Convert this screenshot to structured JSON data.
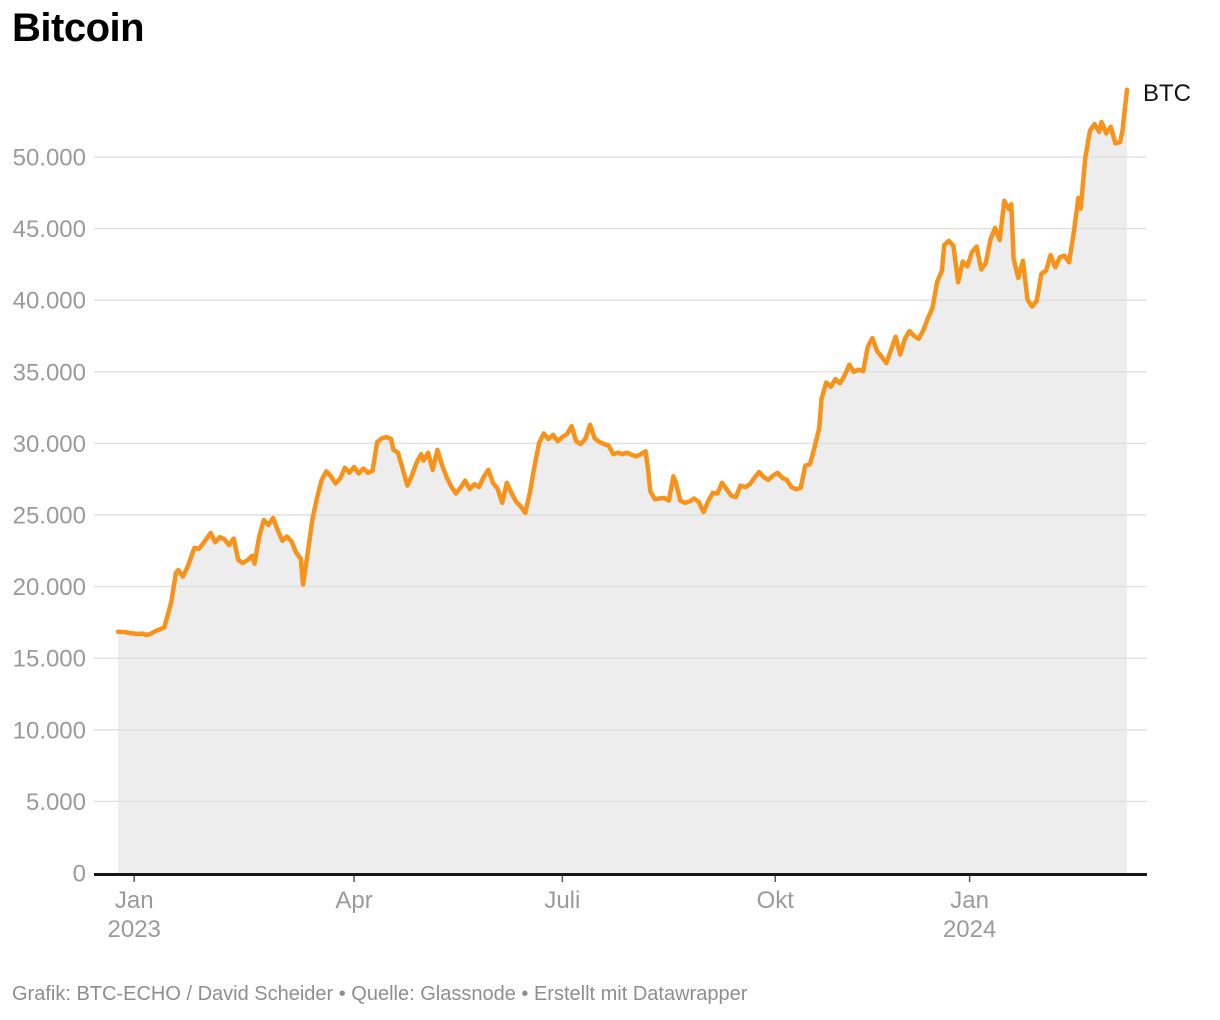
{
  "title": "Bitcoin",
  "series_label": "BTC",
  "footer": "Grafik: BTC-ECHO / David Scheider • Quelle: Glassnode • Erstellt mit Datawrapper",
  "colors": {
    "line": "#F7931A",
    "area_fill": "#ededed",
    "gridline": "#e0e0e0",
    "zero_axis": "#161616",
    "axis_label": "#9a9a9a",
    "tick_mark": "#555555",
    "title_text": "#000000",
    "footer_text": "#8e8e8e",
    "series_label_text": "#141414"
  },
  "chart_data": {
    "type": "area",
    "title": "Bitcoin",
    "xlabel": "",
    "ylabel": "",
    "legend_position": "end-of-line",
    "grid": true,
    "ylim": [
      0,
      55800
    ],
    "y_ticks": [
      {
        "value": 0,
        "label": "0"
      },
      {
        "value": 5000,
        "label": "5.000"
      },
      {
        "value": 10000,
        "label": "10.000"
      },
      {
        "value": 15000,
        "label": "15.000"
      },
      {
        "value": 20000,
        "label": "20.000"
      },
      {
        "value": 25000,
        "label": "25.000"
      },
      {
        "value": 30000,
        "label": "30.000"
      },
      {
        "value": 35000,
        "label": "35.000"
      },
      {
        "value": 40000,
        "label": "40.000"
      },
      {
        "value": 45000,
        "label": "45.000"
      },
      {
        "value": 50000,
        "label": "50.000"
      }
    ],
    "x_domain_days": [
      0,
      436
    ],
    "x_ticks": [
      {
        "day": 7,
        "label": "Jan",
        "sublabel": "2023"
      },
      {
        "day": 102,
        "label": "Apr",
        "sublabel": ""
      },
      {
        "day": 192,
        "label": "Juli",
        "sublabel": ""
      },
      {
        "day": 284,
        "label": "Okt",
        "sublabel": ""
      },
      {
        "day": 368,
        "label": "Jan",
        "sublabel": "2024"
      }
    ],
    "series": [
      {
        "name": "BTC",
        "points": [
          [
            0,
            16850
          ],
          [
            3,
            16820
          ],
          [
            5,
            16760
          ],
          [
            8,
            16700
          ],
          [
            11,
            16720
          ],
          [
            12,
            16620
          ],
          [
            14,
            16700
          ],
          [
            17,
            16950
          ],
          [
            20,
            17150
          ],
          [
            23,
            18900
          ],
          [
            25,
            20950
          ],
          [
            26,
            21150
          ],
          [
            28,
            20700
          ],
          [
            30,
            21350
          ],
          [
            33,
            22700
          ],
          [
            35,
            22650
          ],
          [
            37,
            23050
          ],
          [
            40,
            23750
          ],
          [
            42,
            23100
          ],
          [
            44,
            23450
          ],
          [
            46,
            23300
          ],
          [
            48,
            22900
          ],
          [
            50,
            23350
          ],
          [
            52,
            21850
          ],
          [
            54,
            21650
          ],
          [
            56,
            21850
          ],
          [
            58,
            22150
          ],
          [
            59,
            21600
          ],
          [
            61,
            23500
          ],
          [
            63,
            24650
          ],
          [
            65,
            24300
          ],
          [
            67,
            24800
          ],
          [
            69,
            23950
          ],
          [
            71,
            23200
          ],
          [
            73,
            23500
          ],
          [
            75,
            23150
          ],
          [
            77,
            22350
          ],
          [
            79,
            21950
          ],
          [
            80,
            20150
          ],
          [
            82,
            22400
          ],
          [
            84,
            24700
          ],
          [
            86,
            26200
          ],
          [
            88,
            27450
          ],
          [
            90,
            28050
          ],
          [
            92,
            27700
          ],
          [
            94,
            27200
          ],
          [
            96,
            27550
          ],
          [
            98,
            28300
          ],
          [
            100,
            27950
          ],
          [
            102,
            28350
          ],
          [
            104,
            27900
          ],
          [
            106,
            28250
          ],
          [
            108,
            27950
          ],
          [
            110,
            28100
          ],
          [
            112,
            30100
          ],
          [
            114,
            30350
          ],
          [
            116,
            30450
          ],
          [
            118,
            30300
          ],
          [
            119,
            29550
          ],
          [
            121,
            29350
          ],
          [
            123,
            28250
          ],
          [
            125,
            27050
          ],
          [
            127,
            27750
          ],
          [
            129,
            28650
          ],
          [
            131,
            29250
          ],
          [
            132,
            28800
          ],
          [
            134,
            29350
          ],
          [
            136,
            28150
          ],
          [
            138,
            29550
          ],
          [
            140,
            28500
          ],
          [
            142,
            27650
          ],
          [
            144,
            27000
          ],
          [
            146,
            26500
          ],
          [
            148,
            26900
          ],
          [
            150,
            27400
          ],
          [
            152,
            26800
          ],
          [
            154,
            27150
          ],
          [
            156,
            26950
          ],
          [
            158,
            27650
          ],
          [
            160,
            28150
          ],
          [
            162,
            27250
          ],
          [
            164,
            26850
          ],
          [
            166,
            25850
          ],
          [
            168,
            27250
          ],
          [
            170,
            26550
          ],
          [
            172,
            25950
          ],
          [
            174,
            25600
          ],
          [
            176,
            25150
          ],
          [
            178,
            26550
          ],
          [
            180,
            28450
          ],
          [
            182,
            30050
          ],
          [
            184,
            30700
          ],
          [
            186,
            30300
          ],
          [
            188,
            30600
          ],
          [
            190,
            30150
          ],
          [
            192,
            30450
          ],
          [
            194,
            30650
          ],
          [
            196,
            31200
          ],
          [
            198,
            30150
          ],
          [
            200,
            29950
          ],
          [
            202,
            30350
          ],
          [
            204,
            31300
          ],
          [
            206,
            30350
          ],
          [
            208,
            30100
          ],
          [
            210,
            29950
          ],
          [
            212,
            29850
          ],
          [
            214,
            29250
          ],
          [
            216,
            29350
          ],
          [
            218,
            29250
          ],
          [
            220,
            29350
          ],
          [
            222,
            29200
          ],
          [
            224,
            29100
          ],
          [
            226,
            29250
          ],
          [
            228,
            29450
          ],
          [
            229,
            28250
          ],
          [
            230,
            26650
          ],
          [
            232,
            26100
          ],
          [
            234,
            26150
          ],
          [
            236,
            26200
          ],
          [
            238,
            26000
          ],
          [
            240,
            27700
          ],
          [
            241,
            27300
          ],
          [
            243,
            26000
          ],
          [
            245,
            25850
          ],
          [
            247,
            25950
          ],
          [
            249,
            26150
          ],
          [
            251,
            25900
          ],
          [
            253,
            25200
          ],
          [
            255,
            25950
          ],
          [
            257,
            26550
          ],
          [
            259,
            26500
          ],
          [
            261,
            27250
          ],
          [
            263,
            26800
          ],
          [
            265,
            26350
          ],
          [
            267,
            26250
          ],
          [
            269,
            27050
          ],
          [
            271,
            26950
          ],
          [
            273,
            27150
          ],
          [
            275,
            27600
          ],
          [
            277,
            28000
          ],
          [
            279,
            27650
          ],
          [
            281,
            27450
          ],
          [
            283,
            27750
          ],
          [
            285,
            27950
          ],
          [
            287,
            27600
          ],
          [
            289,
            27450
          ],
          [
            291,
            26950
          ],
          [
            293,
            26800
          ],
          [
            295,
            26900
          ],
          [
            297,
            28450
          ],
          [
            299,
            28550
          ],
          [
            301,
            29750
          ],
          [
            303,
            31050
          ],
          [
            304,
            33100
          ],
          [
            306,
            34250
          ],
          [
            308,
            33950
          ],
          [
            310,
            34500
          ],
          [
            312,
            34200
          ],
          [
            314,
            34750
          ],
          [
            316,
            35500
          ],
          [
            318,
            35000
          ],
          [
            320,
            35150
          ],
          [
            322,
            35050
          ],
          [
            324,
            36750
          ],
          [
            326,
            37350
          ],
          [
            328,
            36450
          ],
          [
            330,
            36050
          ],
          [
            332,
            35600
          ],
          [
            334,
            36500
          ],
          [
            336,
            37450
          ],
          [
            338,
            36200
          ],
          [
            340,
            37300
          ],
          [
            342,
            37850
          ],
          [
            344,
            37500
          ],
          [
            346,
            37300
          ],
          [
            348,
            37900
          ],
          [
            350,
            38750
          ],
          [
            352,
            39500
          ],
          [
            354,
            41300
          ],
          [
            356,
            42050
          ],
          [
            357,
            43850
          ],
          [
            359,
            44150
          ],
          [
            361,
            43800
          ],
          [
            363,
            41250
          ],
          [
            365,
            42700
          ],
          [
            367,
            42350
          ],
          [
            369,
            43350
          ],
          [
            371,
            43750
          ],
          [
            373,
            42150
          ],
          [
            375,
            42600
          ],
          [
            377,
            44250
          ],
          [
            379,
            45050
          ],
          [
            381,
            44200
          ],
          [
            383,
            46950
          ],
          [
            385,
            46350
          ],
          [
            386,
            46700
          ],
          [
            387,
            42900
          ],
          [
            389,
            41550
          ],
          [
            391,
            42750
          ],
          [
            393,
            40050
          ],
          [
            395,
            39550
          ],
          [
            397,
            39950
          ],
          [
            399,
            41850
          ],
          [
            401,
            42050
          ],
          [
            403,
            43150
          ],
          [
            405,
            42300
          ],
          [
            407,
            43000
          ],
          [
            409,
            43100
          ],
          [
            411,
            42650
          ],
          [
            413,
            44750
          ],
          [
            415,
            47150
          ],
          [
            416,
            46400
          ],
          [
            418,
            49950
          ],
          [
            420,
            51850
          ],
          [
            422,
            52300
          ],
          [
            424,
            51750
          ],
          [
            425,
            52450
          ],
          [
            427,
            51650
          ],
          [
            429,
            52100
          ],
          [
            431,
            50950
          ],
          [
            433,
            51050
          ],
          [
            434,
            51800
          ],
          [
            436,
            54700
          ]
        ]
      }
    ]
  }
}
